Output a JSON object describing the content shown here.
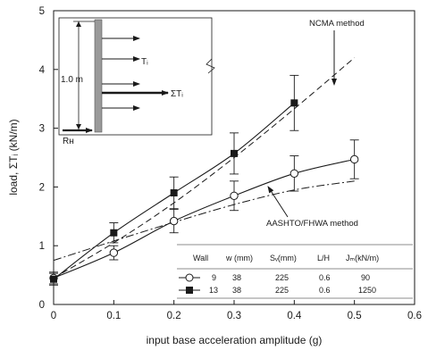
{
  "chart_data": {
    "type": "line",
    "xlabel": "input base acceleration amplitude (g)",
    "ylabel": "load, ΣTᵢ (kN/m)",
    "xlim": [
      0,
      0.6
    ],
    "ylim": [
      0,
      5
    ],
    "x_ticks": [
      "0",
      "0.1",
      "0.2",
      "0.3",
      "0.4",
      "0.5",
      "0.6"
    ],
    "y_ticks": [
      "0",
      "1",
      "2",
      "3",
      "4",
      "5"
    ],
    "grid": false,
    "series": [
      {
        "name": "9",
        "marker": "open-circle",
        "x": [
          0,
          0.1,
          0.2,
          0.3,
          0.4,
          0.5
        ],
        "y": [
          0.45,
          0.88,
          1.42,
          1.85,
          2.23,
          2.47
        ],
        "err": [
          0.1,
          0.12,
          0.2,
          0.25,
          0.3,
          0.33
        ]
      },
      {
        "name": "13",
        "marker": "filled-square",
        "x": [
          0,
          0.1,
          0.2,
          0.3,
          0.4
        ],
        "y": [
          0.43,
          1.22,
          1.9,
          2.57,
          3.43
        ],
        "err": [
          0.1,
          0.17,
          0.27,
          0.35,
          0.47
        ]
      }
    ],
    "methods": [
      {
        "name": "NCMA method",
        "style": "dashed",
        "x": [
          0,
          0.1,
          0.2,
          0.3,
          0.4,
          0.5
        ],
        "y": [
          0.45,
          1.05,
          1.73,
          2.5,
          3.33,
          4.2
        ]
      },
      {
        "name": "AASHTO/FHWA method",
        "style": "dash-dot",
        "x": [
          0,
          0.1,
          0.2,
          0.3,
          0.4,
          0.5
        ],
        "y": [
          0.75,
          1.08,
          1.4,
          1.7,
          1.95,
          2.1
        ]
      }
    ],
    "annotations": {
      "ncma": "NCMA method",
      "aashto": "AASHTO/FHWA method"
    },
    "legend_table": {
      "placement": "bottom-right",
      "headers": [
        "Wall",
        "w (mm)",
        "Sᵥ(mm)",
        "L/H",
        "Jₘ(kN/m)"
      ],
      "rows": [
        [
          "9",
          "38",
          "225",
          "0.6",
          "90"
        ],
        [
          "13",
          "38",
          "225",
          "0.6",
          "1250"
        ]
      ]
    },
    "inset": {
      "height_label": "1.0 m",
      "force_label": "Tᵢ",
      "sum_label": "ΣTᵢ",
      "base_label": "Rʜ"
    }
  }
}
